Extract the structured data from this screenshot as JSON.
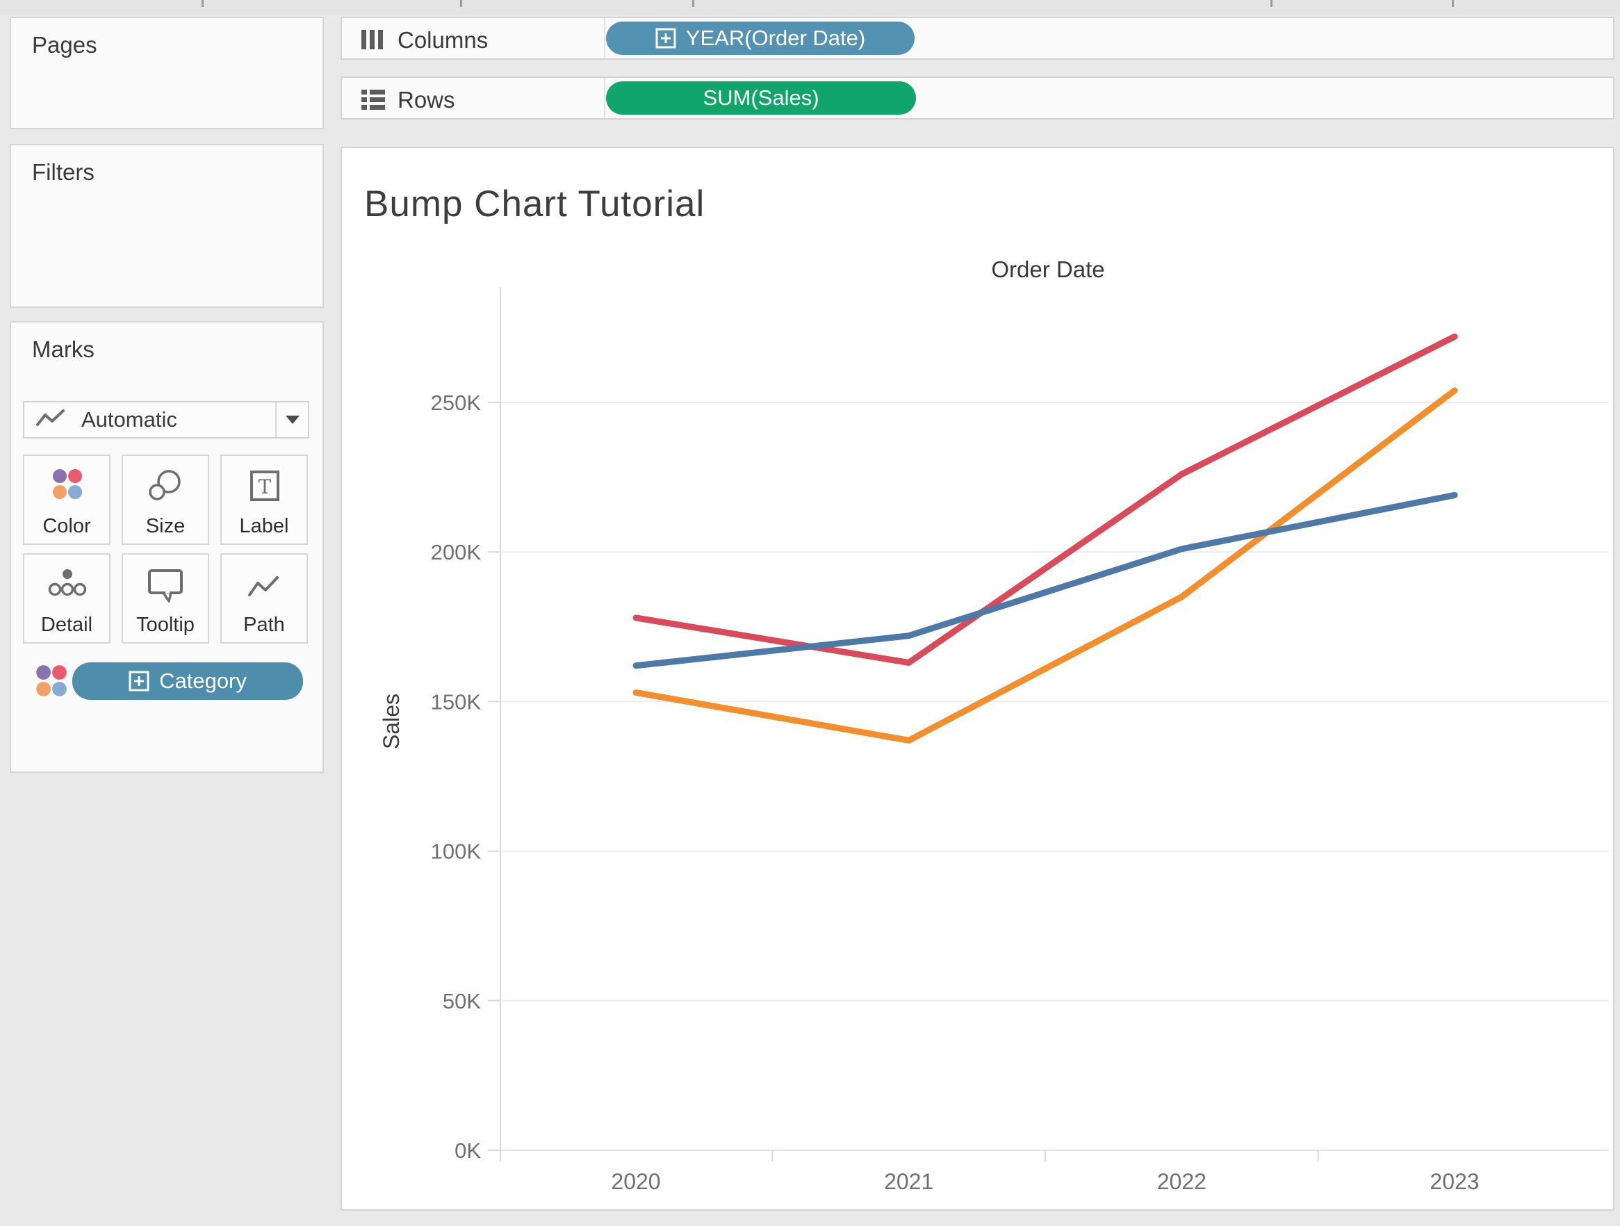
{
  "shelves": {
    "columns": {
      "label": "Columns",
      "icon": "columns-icon",
      "pills": [
        {
          "label": "YEAR(Order Date)",
          "type": "dimension",
          "color": "#5492b4",
          "icon": "expand-plus-icon"
        }
      ]
    },
    "rows": {
      "label": "Rows",
      "icon": "rows-icon",
      "pills": [
        {
          "label": "SUM(Sales)",
          "type": "measure",
          "color": "#10a56a"
        }
      ]
    }
  },
  "cards": {
    "pages": {
      "title": "Pages"
    },
    "filters": {
      "title": "Filters"
    },
    "marks": {
      "title": "Marks",
      "mark_type_selector": {
        "label": "Automatic",
        "icon": "line-mark-icon",
        "dropdown_icon": "caret-down-icon"
      },
      "buttons": [
        {
          "label": "Color",
          "icon": "color-dots-icon"
        },
        {
          "label": "Size",
          "icon": "size-circles-icon"
        },
        {
          "label": "Label",
          "icon": "text-label-icon"
        },
        {
          "label": "Detail",
          "icon": "detail-dots-icon"
        },
        {
          "label": "Tooltip",
          "icon": "tooltip-bubble-icon"
        },
        {
          "label": "Path",
          "icon": "path-zigzag-icon"
        }
      ],
      "color_shelf_pill": {
        "label": "Category",
        "icon": "expand-plus-icon",
        "color": "#4f8dad"
      }
    }
  },
  "chart": {
    "title": "Bump Chart Tutorial",
    "column_header": "Order Date",
    "y_axis_title": "Sales"
  },
  "chart_data": {
    "type": "line",
    "x": [
      2020,
      2021,
      2022,
      2023
    ],
    "x_labels": [
      "2020",
      "2021",
      "2022",
      "2023"
    ],
    "series": [
      {
        "name": "red",
        "color": "#d94a5b",
        "values": [
          178000,
          163000,
          226000,
          272000
        ]
      },
      {
        "name": "orange",
        "color": "#f28e2b",
        "values": [
          153000,
          137000,
          185000,
          254000
        ]
      },
      {
        "name": "blue",
        "color": "#4e79a7",
        "values": [
          162000,
          172000,
          201000,
          219000
        ]
      }
    ],
    "title": "Bump Chart Tutorial",
    "xlabel": "Order Date",
    "ylabel": "Sales",
    "ylim": [
      0,
      280000
    ],
    "yticks": [
      0,
      50000,
      100000,
      150000,
      200000,
      250000
    ],
    "ytick_labels": [
      "0K",
      "50K",
      "100K",
      "150K",
      "200K",
      "250K"
    ],
    "grid": true,
    "legend": "none"
  },
  "colors": {
    "dimension_pill": "#5492b4",
    "measure_pill": "#10a56a",
    "category_pill": "#4f8dad",
    "color_icon_dots": [
      "#8a72ae",
      "#ea5b6d",
      "#f0a165",
      "#88abd3"
    ]
  }
}
